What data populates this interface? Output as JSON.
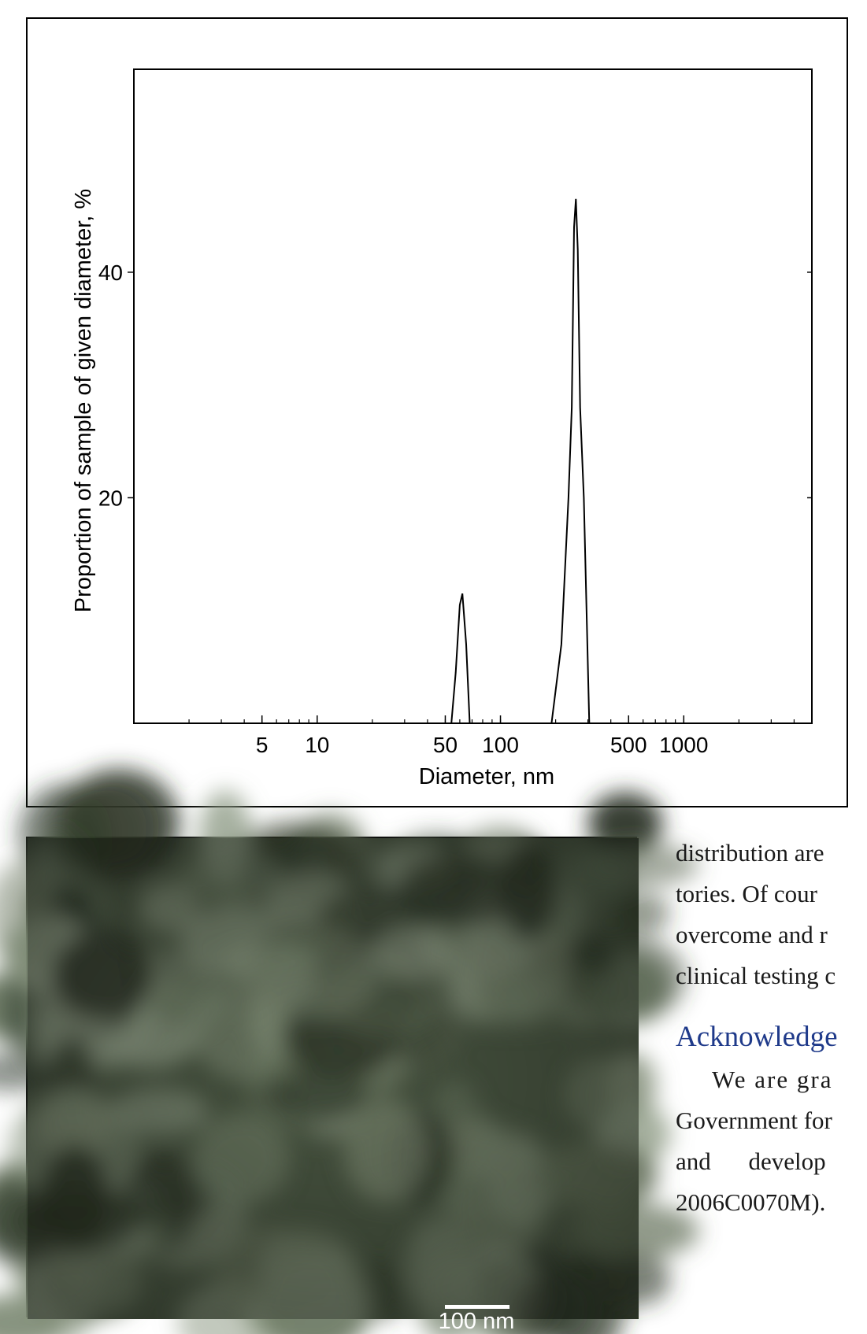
{
  "chart_data": {
    "type": "line",
    "xlabel": "Diameter, nm",
    "ylabel": "Proportion of sample of given diameter, %",
    "x_scale": "log",
    "xlim": [
      1,
      5000
    ],
    "ylim": [
      0,
      58
    ],
    "x_ticks": [
      5,
      10,
      50,
      100,
      500,
      1000
    ],
    "y_ticks": [
      20,
      40
    ],
    "grid": false,
    "series": [
      {
        "x": [
          45,
          54,
          57,
          60,
          62,
          65,
          68,
          72,
          190,
          215,
          235,
          245,
          252,
          258,
          264,
          272,
          285,
          305,
          330
        ],
        "y": [
          0,
          0,
          4.5,
          10.5,
          11.5,
          7,
          0,
          0,
          0,
          7,
          20,
          28,
          44,
          46.5,
          42,
          28,
          20,
          0,
          0
        ]
      }
    ]
  },
  "tem_image": {
    "scale_label": "100 nm"
  },
  "text": {
    "line1": "distribution are",
    "line2": "tories. Of cour",
    "line3": "overcome and r",
    "line4": "clinical testing c",
    "heading": "Acknowledge",
    "line5": "We are gra",
    "line6": "Government for",
    "line7": "and develop",
    "line8": "2006C0070M)."
  }
}
